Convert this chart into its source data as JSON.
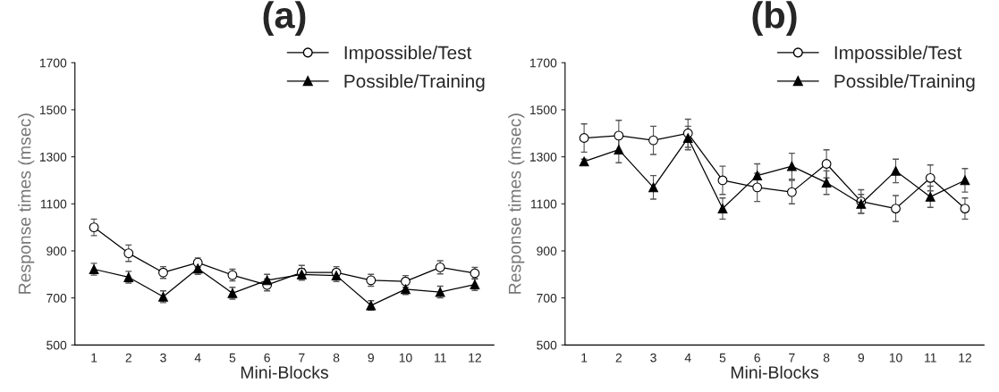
{
  "chart_data": [
    {
      "type": "line",
      "title": "(a)",
      "xlabel": "Mini-Blocks",
      "ylabel": "Response times (msec)",
      "categories": [
        "1",
        "2",
        "3",
        "4",
        "5",
        "6",
        "7",
        "8",
        "9",
        "10",
        "11",
        "12"
      ],
      "ylim": [
        500,
        1700
      ],
      "yticks": [
        500,
        700,
        900,
        1100,
        1300,
        1500,
        1700
      ],
      "legend": "top right",
      "grid": false,
      "series": [
        {
          "name": "Impossible/Test",
          "color": "#000000",
          "marker": "circle",
          "values": [
            1000,
            890,
            808,
            850,
            797,
            755,
            808,
            808,
            775,
            770,
            830,
            805
          ],
          "errors": [
            35,
            35,
            25,
            20,
            25,
            25,
            30,
            25,
            25,
            25,
            28,
            25
          ]
        },
        {
          "name": "Possible/Training",
          "color": "#000000",
          "marker": "triangle",
          "values": [
            822,
            788,
            705,
            825,
            720,
            775,
            800,
            795,
            668,
            737,
            725,
            757
          ],
          "errors": [
            25,
            25,
            25,
            25,
            25,
            25,
            25,
            25,
            20,
            22,
            25,
            25
          ]
        }
      ]
    },
    {
      "type": "line",
      "title": "(b)",
      "xlabel": "Mini-Blocks",
      "ylabel": "Response times (msec)",
      "categories": [
        "1",
        "2",
        "3",
        "4",
        "5",
        "6",
        "7",
        "8",
        "9",
        "10",
        "11",
        "12"
      ],
      "ylim": [
        500,
        1700
      ],
      "yticks": [
        500,
        700,
        900,
        1100,
        1300,
        1500,
        1700
      ],
      "legend": "top right",
      "grid": false,
      "series": [
        {
          "name": "Impossible/Test",
          "color": "#000000",
          "marker": "circle",
          "values": [
            1380,
            1390,
            1370,
            1400,
            1200,
            1170,
            1150,
            1270,
            1110,
            1080,
            1210,
            1080
          ],
          "errors": [
            60,
            65,
            60,
            60,
            60,
            60,
            50,
            60,
            50,
            55,
            55,
            45
          ]
        },
        {
          "name": "Possible/Training",
          "color": "#000000",
          "marker": "triangle",
          "values": [
            1280,
            1330,
            1170,
            1380,
            1080,
            1220,
            1260,
            1190,
            1100,
            1240,
            1130,
            1200
          ],
          "errors": [
            10,
            55,
            50,
            50,
            45,
            50,
            55,
            50,
            40,
            50,
            45,
            50
          ]
        }
      ]
    }
  ]
}
